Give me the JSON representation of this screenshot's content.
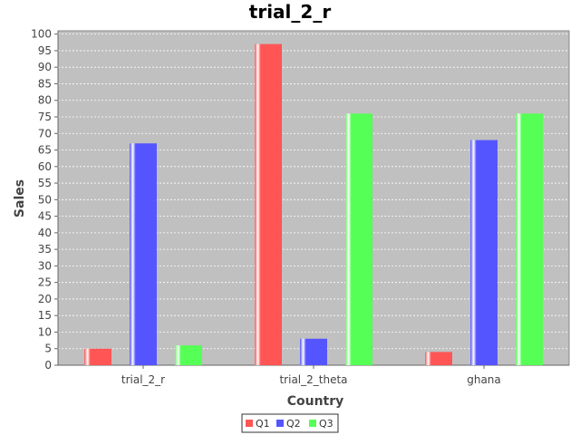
{
  "chart_data": {
    "type": "bar",
    "title": "trial_2_r",
    "xlabel": "Country",
    "ylabel": "Sales",
    "categories": [
      "trial_2_r",
      "trial_2_theta",
      "ghana"
    ],
    "series": [
      {
        "name": "Q1",
        "values": [
          5,
          97,
          4
        ],
        "color": "#ff5555"
      },
      {
        "name": "Q2",
        "values": [
          67,
          8,
          68
        ],
        "color": "#5555ff"
      },
      {
        "name": "Q3",
        "values": [
          6,
          76,
          76
        ],
        "color": "#55ff55"
      }
    ],
    "ylim": [
      0,
      101
    ],
    "yticks": [
      0,
      5,
      10,
      15,
      20,
      25,
      30,
      35,
      40,
      45,
      50,
      55,
      60,
      65,
      70,
      75,
      80,
      85,
      90,
      95,
      100
    ],
    "grid": true,
    "legend_position": "bottom",
    "plot_background": "#c0c0c0"
  }
}
